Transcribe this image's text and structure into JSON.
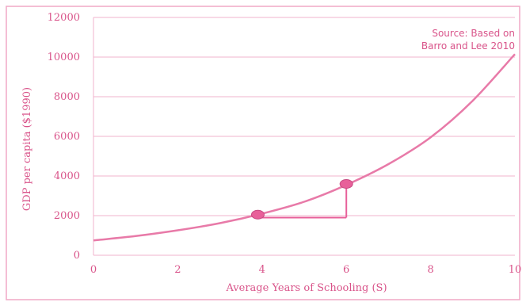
{
  "chart_data": {
    "type": "line",
    "xlabel": "Average Years of Schooling (S)",
    "ylabel": "GDP per capita ($1990)",
    "xlim": [
      0,
      10
    ],
    "ylim": [
      0,
      12000
    ],
    "x_ticks": [
      "0",
      "2",
      "4",
      "6",
      "8",
      "10"
    ],
    "y_ticks": [
      "0",
      "2000",
      "4000",
      "6000",
      "8000",
      "10000",
      "12000"
    ],
    "grid": "horizontal",
    "series": [
      {
        "x": [
          0,
          1,
          2,
          3,
          4,
          5,
          6,
          7,
          8,
          9,
          10
        ],
        "y": [
          750,
          970,
          1260,
          1620,
          2100,
          2700,
          3550,
          4600,
          5950,
          7800,
          10150
        ]
      }
    ],
    "highlight_points": [
      {
        "x": 3.9,
        "y": 2050
      },
      {
        "x": 6.0,
        "y": 3600
      }
    ],
    "annotation_lines": [
      {
        "x1": 3.9,
        "y1": 1900,
        "x2": 6.0,
        "y2": 1900
      },
      {
        "x1": 6.0,
        "y1": 1900,
        "x2": 6.0,
        "y2": 3600
      }
    ],
    "annotations": [
      "Source: Based on",
      "Barro and Lee 2010"
    ],
    "colors": {
      "line": "#e87aa8",
      "text": "#d9548a",
      "grid": "#f2b3cc",
      "frame": "#f0a9c6",
      "marker": "#e8609a"
    }
  }
}
